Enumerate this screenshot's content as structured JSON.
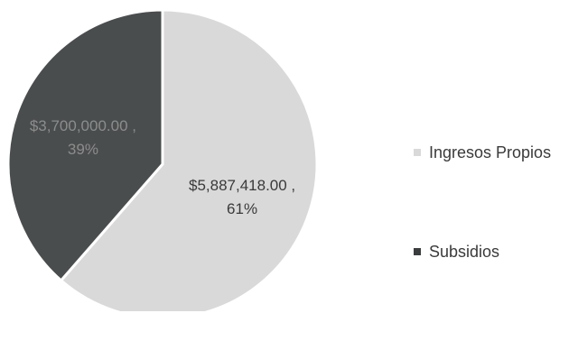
{
  "chart_data": {
    "type": "pie",
    "title": "",
    "slices": [
      {
        "name": "Ingresos Propios",
        "value": 5887418.0,
        "percent": 61,
        "label_value": "$5,887,418.00 ,",
        "label_percent": "61%",
        "color": "#d9d9d9",
        "label_color": "#3a3a3a"
      },
      {
        "name": "Subsidios",
        "value": 3700000.0,
        "percent": 39,
        "label_value": "$3,700,000.00 ,",
        "label_percent": "39%",
        "color": "#4a4d4e",
        "label_color": "#8c8c8c"
      }
    ],
    "legend_position": "right",
    "start_angle_deg": 0
  }
}
